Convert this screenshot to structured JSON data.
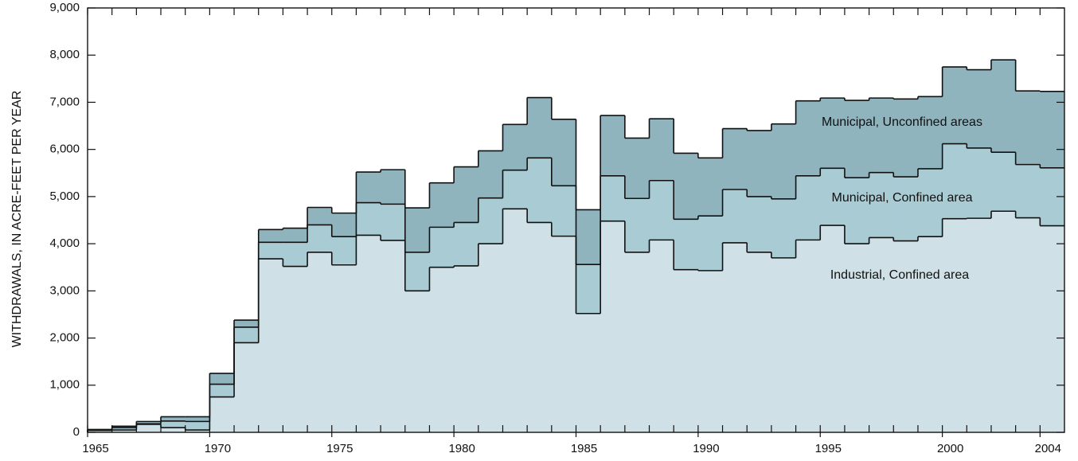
{
  "chart_data": {
    "type": "stacked-step-area",
    "y_label": "WITHDRAWALS, IN ACRE-FEET PER YEAR",
    "x": [
      1965,
      1966,
      1967,
      1968,
      1969,
      1970,
      1971,
      1972,
      1973,
      1974,
      1975,
      1976,
      1977,
      1978,
      1979,
      1980,
      1981,
      1982,
      1983,
      1984,
      1985,
      1986,
      1987,
      1988,
      1989,
      1990,
      1991,
      1992,
      1993,
      1994,
      1995,
      1996,
      1997,
      1998,
      1999,
      2000,
      2001,
      2002,
      2003,
      2004
    ],
    "series": [
      {
        "name": "Industrial, Confined area",
        "color": "#cfe1e6",
        "values": [
          40,
          50,
          170,
          100,
          50,
          750,
          1900,
          3680,
          3520,
          3820,
          3550,
          4180,
          4070,
          3000,
          3500,
          3530,
          4000,
          4740,
          4450,
          4160,
          2520,
          4480,
          3820,
          4080,
          3450,
          3430,
          4020,
          3820,
          3700,
          4080,
          4390,
          4000,
          4130,
          4060,
          4150,
          4530,
          4540,
          4690,
          4550,
          4380
        ]
      },
      {
        "name": "Municipal, Confined area",
        "color": "#a9cbd4",
        "values": [
          10,
          50,
          10,
          140,
          180,
          270,
          330,
          350,
          510,
          580,
          600,
          690,
          770,
          820,
          850,
          920,
          970,
          820,
          1370,
          1070,
          1040,
          960,
          1140,
          1260,
          1070,
          1160,
          1130,
          1180,
          1250,
          1360,
          1210,
          1400,
          1380,
          1360,
          1440,
          1590,
          1490,
          1250,
          1130,
          1230
        ]
      },
      {
        "name": "Municipal, Unconfined areas",
        "color": "#8fb4be",
        "values": [
          10,
          30,
          50,
          90,
          100,
          230,
          150,
          270,
          300,
          370,
          500,
          650,
          730,
          940,
          940,
          1180,
          1000,
          970,
          1280,
          1410,
          1160,
          1280,
          1280,
          1310,
          1400,
          1230,
          1290,
          1400,
          1590,
          1590,
          1490,
          1640,
          1580,
          1650,
          1530,
          1630,
          1660,
          1960,
          1560,
          1620
        ]
      }
    ],
    "xlim": [
      1965,
      2005
    ],
    "xticks": [
      1965,
      1970,
      1975,
      1980,
      1985,
      1990,
      1995,
      2000,
      2004
    ],
    "ylim": [
      0,
      9000
    ],
    "yticks": [
      0,
      {
        "value": 1000,
        "label": "1,000"
      },
      {
        "value": 2000,
        "label": "2,000"
      },
      {
        "value": 3000,
        "label": "3,000"
      },
      {
        "value": 4000,
        "label": "4,000"
      },
      {
        "value": 5000,
        "label": "5,000"
      },
      {
        "value": 6000,
        "label": "6,000"
      },
      {
        "value": 7000,
        "label": "7,000"
      },
      {
        "value": 8000,
        "label": "8,000"
      },
      {
        "value": 9000,
        "label": "9,000"
      }
    ]
  }
}
